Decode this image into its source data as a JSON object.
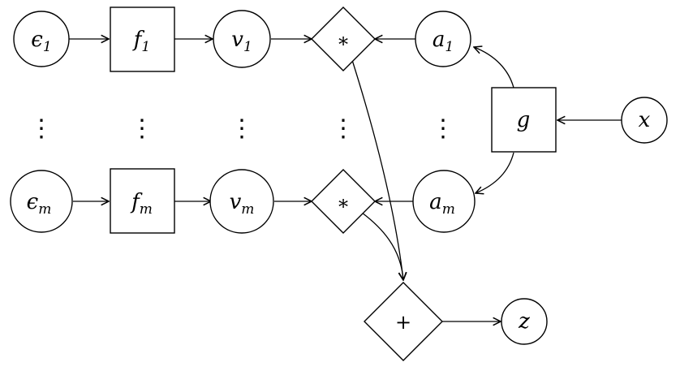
{
  "nodes": {
    "eps1": {
      "base": "ϵ",
      "sub": "1"
    },
    "f1": {
      "base": "f",
      "sub": "1"
    },
    "v1": {
      "base": "v",
      "sub": "1"
    },
    "mul1": {
      "text": "∗"
    },
    "a1": {
      "base": "a",
      "sub": "1"
    },
    "g": {
      "base": "g",
      "sub": ""
    },
    "x": {
      "base": "x",
      "sub": ""
    },
    "epsm": {
      "base": "ϵ",
      "sub": "m"
    },
    "fm": {
      "base": "f",
      "sub": "m"
    },
    "vm": {
      "base": "v",
      "sub": "m"
    },
    "mulm": {
      "text": "∗"
    },
    "am": {
      "base": "a",
      "sub": "m"
    },
    "plus": {
      "text": "+"
    },
    "z": {
      "base": "z",
      "sub": ""
    }
  },
  "ellipsis": "⋮",
  "colors": {
    "stroke": "#000000",
    "fill": "#ffffff"
  }
}
